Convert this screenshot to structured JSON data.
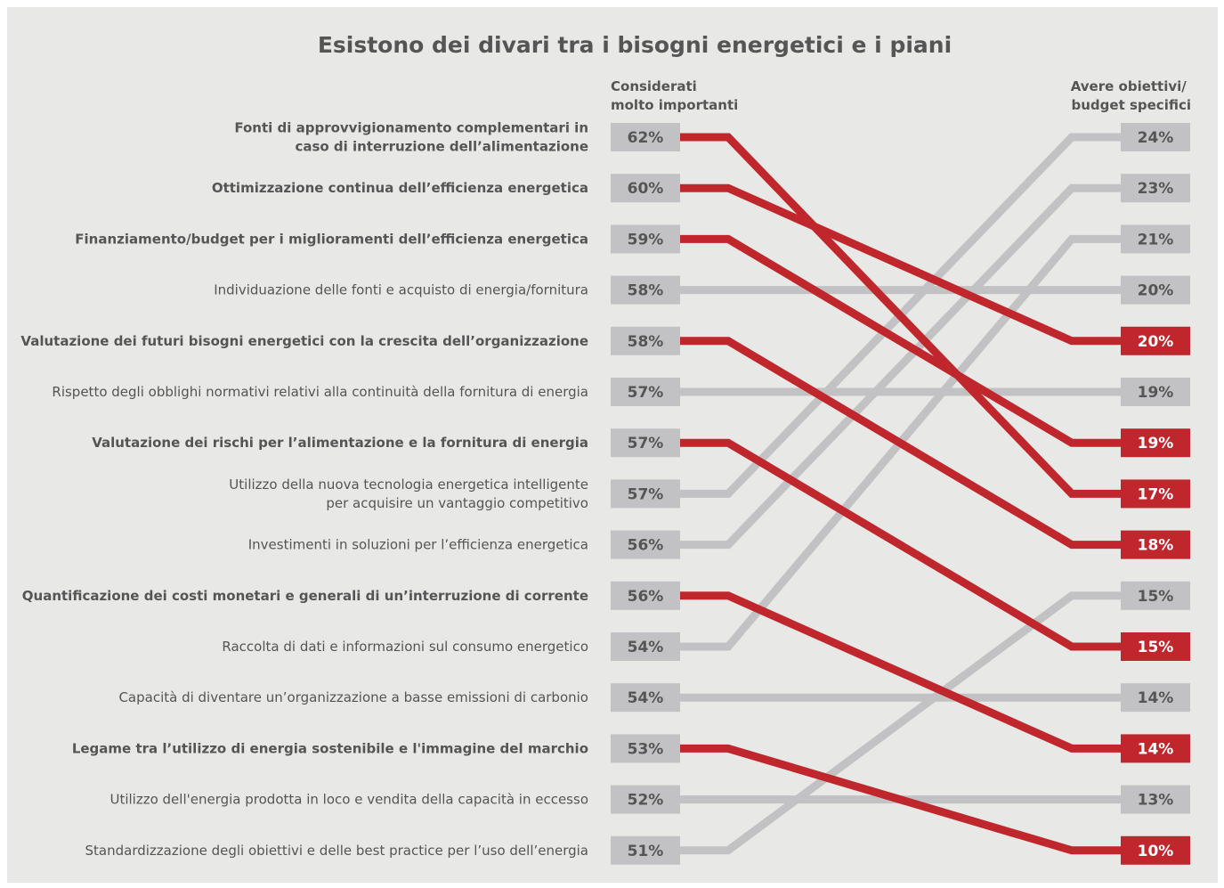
{
  "chart_data": {
    "type": "slope",
    "title": "Esistono dei divari tra i bisogni energetici e i piani",
    "left_header": [
      "Considerati",
      "molto importanti"
    ],
    "right_header": [
      "Avere obiettivi/",
      "budget specifici"
    ],
    "colors": {
      "highlight": "#c0272d",
      "muted": "#c2c2c4",
      "text": "#555555",
      "badge_text_muted": "#555555",
      "badge_text_highlight": "#ffffff",
      "background": "#e8e8e6"
    },
    "items": [
      {
        "label": [
          "Fonti di approvvigionamento complementari in",
          "caso di interruzione dell’alimentazione"
        ],
        "important": 62,
        "budget": 17,
        "highlight": true,
        "right_rank": 8
      },
      {
        "label": [
          "Ottimizzazione continua dell’efficienza energetica"
        ],
        "important": 60,
        "budget": 20,
        "highlight": true,
        "right_rank": 5
      },
      {
        "label": [
          "Finanziamento/budget per i miglioramenti dell’efficienza energetica"
        ],
        "important": 59,
        "budget": 19,
        "highlight": true,
        "right_rank": 7
      },
      {
        "label": [
          "Individuazione delle fonti e acquisto di energia/fornitura"
        ],
        "important": 58,
        "budget": 20,
        "highlight": false,
        "right_rank": 4
      },
      {
        "label": [
          "Valutazione dei futuri bisogni energetici con la crescita dell’organizzazione"
        ],
        "important": 58,
        "budget": 18,
        "highlight": true,
        "right_rank": 9
      },
      {
        "label": [
          "Rispetto degli obblighi normativi relativi alla continuità della fornitura di energia"
        ],
        "important": 57,
        "budget": 19,
        "highlight": false,
        "right_rank": 6
      },
      {
        "label": [
          "Valutazione dei rischi per l’alimentazione e la fornitura di energia"
        ],
        "important": 57,
        "budget": 15,
        "highlight": true,
        "right_rank": 11
      },
      {
        "label": [
          "Utilizzo della nuova tecnologia energetica intelligente",
          "per acquisire un vantaggio competitivo"
        ],
        "important": 57,
        "budget": 24,
        "highlight": false,
        "right_rank": 1
      },
      {
        "label": [
          "Investimenti in soluzioni per l’efficienza energetica"
        ],
        "important": 56,
        "budget": 23,
        "highlight": false,
        "right_rank": 2
      },
      {
        "label": [
          "Quantificazione dei costi monetari e generali di un’interruzione di corrente"
        ],
        "important": 56,
        "budget": 14,
        "highlight": true,
        "right_rank": 13
      },
      {
        "label": [
          "Raccolta di dati e informazioni sul consumo energetico"
        ],
        "important": 54,
        "budget": 21,
        "highlight": false,
        "right_rank": 3
      },
      {
        "label": [
          "Capacità di diventare un’organizzazione a basse emissioni di carbonio"
        ],
        "important": 54,
        "budget": 14,
        "highlight": false,
        "right_rank": 12
      },
      {
        "label": [
          "Legame tra l’utilizzo di energia sostenibile e l'immagine del marchio"
        ],
        "important": 53,
        "budget": 10,
        "highlight": true,
        "right_rank": 15
      },
      {
        "label": [
          "Utilizzo dell'energia prodotta in loco e vendita della capacità in eccesso"
        ],
        "important": 52,
        "budget": 13,
        "highlight": false,
        "right_rank": 14
      },
      {
        "label": [
          "Standardizzazione degli obiettivi e delle best practice per l’uso dell’energia"
        ],
        "important": 51,
        "budget": 15,
        "highlight": false,
        "right_rank": 10
      }
    ]
  }
}
